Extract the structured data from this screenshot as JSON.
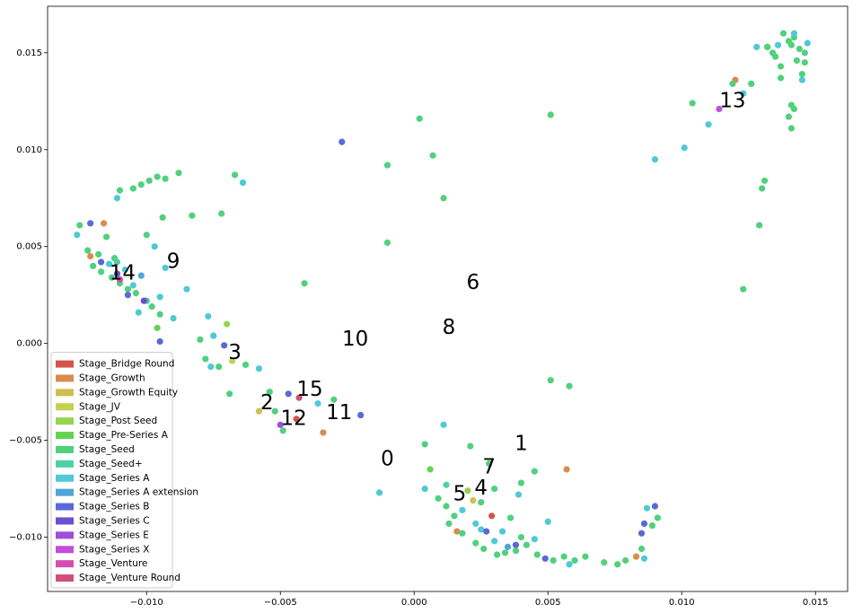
{
  "chart_data": {
    "type": "scatter",
    "title": "",
    "xlabel": "",
    "ylabel": "",
    "xlim": [
      -0.0137,
      0.0162
    ],
    "ylim": [
      -0.0128,
      0.0174
    ],
    "x_ticks": [
      -0.01,
      -0.005,
      0.0,
      0.005,
      0.01,
      0.015
    ],
    "x_tick_labels": [
      "−0.010",
      "−0.005",
      "0.000",
      "0.005",
      "0.010",
      "0.015"
    ],
    "y_ticks": [
      -0.01,
      -0.005,
      0.0,
      0.005,
      0.01,
      0.015
    ],
    "y_tick_labels": [
      "−0.010",
      "−0.005",
      "0.000",
      "0.005",
      "0.010",
      "0.015"
    ],
    "grid": false,
    "legend_position": "lower-left",
    "series": [
      {
        "name": "Stage_Bridge Round",
        "color": "#d5534a",
        "points": [
          [
            -0.0044,
            -0.0039
          ],
          [
            0.0029,
            -0.0089
          ]
        ]
      },
      {
        "name": "Stage_Growth",
        "color": "#d98c4e",
        "points": [
          [
            -0.0116,
            0.0062
          ],
          [
            -0.0034,
            -0.0046
          ],
          [
            0.0057,
            -0.0065
          ],
          [
            0.012,
            0.0136
          ],
          [
            0.0132,
            0.0153
          ],
          [
            -0.0121,
            0.0045
          ],
          [
            0.0016,
            -0.0097
          ],
          [
            0.0083,
            -0.011
          ]
        ]
      },
      {
        "name": "Stage_Growth Equity",
        "color": "#cfbf4f",
        "points": [
          [
            -0.0058,
            -0.0035
          ],
          [
            0.0022,
            -0.0081
          ]
        ]
      },
      {
        "name": "Stage_JV",
        "color": "#c4d14f",
        "points": [
          [
            -0.0068,
            -0.0009
          ]
        ]
      },
      {
        "name": "Stage_Post Seed",
        "color": "#94d451",
        "points": [
          [
            -0.007,
            0.001
          ],
          [
            0.002,
            -0.0076
          ]
        ]
      },
      {
        "name": "Stage_Pre-Series A",
        "color": "#62d451",
        "points": [
          [
            -0.0096,
            0.0008
          ],
          [
            0.0006,
            -0.0065
          ]
        ]
      },
      {
        "name": "Stage_Seed",
        "color": "#50d17c",
        "points": [
          [
            -0.0125,
            0.0061
          ],
          [
            -0.0122,
            0.0048
          ],
          [
            -0.0118,
            0.0046
          ],
          [
            -0.0115,
            0.0055
          ],
          [
            -0.0112,
            0.0044
          ],
          [
            -0.012,
            0.004
          ],
          [
            -0.0117,
            0.0037
          ],
          [
            -0.0113,
            0.0034
          ],
          [
            -0.011,
            0.0031
          ],
          [
            -0.0107,
            0.0028
          ],
          [
            -0.0104,
            0.0026
          ],
          [
            -0.01,
            0.0022
          ],
          [
            -0.0098,
            0.0019
          ],
          [
            -0.0095,
            0.0015
          ],
          [
            -0.01,
            0.0056
          ],
          [
            -0.0105,
            0.008
          ],
          [
            -0.0102,
            0.0082
          ],
          [
            -0.0099,
            0.0084
          ],
          [
            -0.0096,
            0.0086
          ],
          [
            -0.0093,
            0.0085
          ],
          [
            -0.0088,
            0.0088
          ],
          [
            -0.011,
            0.0079
          ],
          [
            -0.0094,
            0.0065
          ],
          [
            -0.0083,
            0.0066
          ],
          [
            -0.0072,
            0.0067
          ],
          [
            -0.0067,
            0.0087
          ],
          [
            -0.008,
            0.0002
          ],
          [
            -0.0078,
            -0.0008
          ],
          [
            -0.0073,
            -0.0012
          ],
          [
            -0.0069,
            -0.0026
          ],
          [
            -0.0063,
            -0.0011
          ],
          [
            -0.0054,
            -0.0025
          ],
          [
            -0.0052,
            -0.0035
          ],
          [
            -0.0049,
            -0.0045
          ],
          [
            -0.0041,
            0.0031
          ],
          [
            -0.003,
            -0.0029
          ],
          [
            -0.001,
            0.0092
          ],
          [
            -0.001,
            0.0052
          ],
          [
            0.0002,
            0.0116
          ],
          [
            0.0007,
            0.0097
          ],
          [
            0.0011,
            0.0075
          ],
          [
            0.0051,
            0.0118
          ],
          [
            0.0051,
            -0.0019
          ],
          [
            0.0058,
            -0.0022
          ],
          [
            0.0045,
            -0.0066
          ],
          [
            0.004,
            -0.0072
          ],
          [
            0.0028,
            -0.0062
          ],
          [
            0.0021,
            -0.0053
          ],
          [
            0.0004,
            -0.0052
          ],
          [
            0.0009,
            -0.008
          ],
          [
            0.0012,
            -0.0084
          ],
          [
            0.0015,
            -0.0089
          ],
          [
            0.0013,
            -0.0093
          ],
          [
            0.0018,
            -0.0098
          ],
          [
            0.0023,
            -0.0103
          ],
          [
            0.0026,
            -0.0106
          ],
          [
            0.0031,
            -0.0109
          ],
          [
            0.0034,
            -0.0108
          ],
          [
            0.0038,
            -0.0107
          ],
          [
            0.0042,
            -0.0104
          ],
          [
            0.0046,
            -0.0109
          ],
          [
            0.0052,
            -0.0112
          ],
          [
            0.0056,
            -0.011
          ],
          [
            0.006,
            -0.0112
          ],
          [
            0.0064,
            -0.011
          ],
          [
            0.0071,
            -0.0113
          ],
          [
            0.0076,
            -0.0114
          ],
          [
            0.0079,
            -0.0112
          ],
          [
            0.0085,
            -0.0106
          ],
          [
            0.0089,
            -0.0094
          ],
          [
            0.0091,
            -0.009
          ],
          [
            0.0025,
            -0.0082
          ],
          [
            0.003,
            -0.0075
          ],
          [
            0.0036,
            -0.009
          ],
          [
            0.004,
            -0.01
          ],
          [
            0.0104,
            0.0124
          ],
          [
            0.0119,
            0.0134
          ],
          [
            0.0126,
            0.0134
          ],
          [
            0.013,
            0.008
          ],
          [
            0.0131,
            0.0084
          ],
          [
            0.0123,
            0.0028
          ],
          [
            0.0129,
            0.0061
          ],
          [
            0.0132,
            0.0153
          ],
          [
            0.0134,
            0.015
          ],
          [
            0.0135,
            0.0148
          ],
          [
            0.0137,
            0.0143
          ],
          [
            0.0138,
            0.016
          ],
          [
            0.014,
            0.0156
          ],
          [
            0.0141,
            0.0154
          ],
          [
            0.0142,
            0.0158
          ],
          [
            0.0143,
            0.0146
          ],
          [
            0.0144,
            0.0152
          ],
          [
            0.0146,
            0.015
          ],
          [
            0.0145,
            0.0139
          ],
          [
            0.0141,
            0.0123
          ],
          [
            0.014,
            0.0117
          ],
          [
            0.0141,
            0.0111
          ],
          [
            0.0142,
            0.0121
          ],
          [
            0.0137,
            0.0137
          ],
          [
            0.0146,
            0.0145
          ]
        ]
      },
      {
        "name": "Stage_Seed+",
        "color": "#4fd0a6",
        "points": [
          [
            -0.0111,
            0.0042
          ],
          [
            0.0012,
            -0.0073
          ]
        ]
      },
      {
        "name": "Stage_Series A",
        "color": "#4fc9d6",
        "points": [
          [
            -0.0126,
            0.0056
          ],
          [
            -0.0114,
            0.0041
          ],
          [
            -0.0111,
            0.0075
          ],
          [
            -0.0108,
            0.0038
          ],
          [
            -0.0105,
            0.003
          ],
          [
            -0.0103,
            0.0016
          ],
          [
            -0.0097,
            0.005
          ],
          [
            -0.0095,
            0.0024
          ],
          [
            -0.0093,
            0.0039
          ],
          [
            -0.009,
            0.0013
          ],
          [
            -0.0085,
            0.0028
          ],
          [
            -0.0077,
            0.0014
          ],
          [
            -0.0075,
            0.0004
          ],
          [
            -0.0076,
            -0.0012
          ],
          [
            -0.0058,
            -0.0013
          ],
          [
            -0.0064,
            0.0083
          ],
          [
            -0.0036,
            -0.0031
          ],
          [
            0.0011,
            -0.0042
          ],
          [
            -0.0013,
            -0.0077
          ],
          [
            0.0004,
            -0.0075
          ],
          [
            0.0018,
            -0.0086
          ],
          [
            0.0023,
            -0.0093
          ],
          [
            0.0025,
            -0.0096
          ],
          [
            0.003,
            -0.0102
          ],
          [
            0.0033,
            -0.0097
          ],
          [
            0.0039,
            -0.0078
          ],
          [
            0.0045,
            -0.0101
          ],
          [
            0.005,
            -0.0092
          ],
          [
            0.0058,
            -0.0114
          ],
          [
            0.0087,
            -0.0085
          ],
          [
            0.0086,
            -0.0111
          ],
          [
            0.009,
            0.0095
          ],
          [
            0.0101,
            0.0101
          ],
          [
            0.011,
            0.0113
          ],
          [
            0.0123,
            0.0129
          ],
          [
            0.0128,
            0.0153
          ],
          [
            0.0136,
            0.0154
          ],
          [
            0.0142,
            0.016
          ],
          [
            0.0147,
            0.0155
          ],
          [
            0.0145,
            0.0136
          ]
        ]
      },
      {
        "name": "Stage_Series A extension",
        "color": "#4fa5d6",
        "points": [
          [
            -0.0102,
            0.0035
          ],
          [
            0.0035,
            -0.0105
          ]
        ]
      },
      {
        "name": "Stage_Series B",
        "color": "#5a69d4",
        "points": [
          [
            -0.0121,
            0.0062
          ],
          [
            -0.0117,
            0.0042
          ],
          [
            -0.0107,
            0.0025
          ],
          [
            -0.0095,
            0.0001
          ],
          [
            -0.0071,
            -0.0001
          ],
          [
            -0.0047,
            -0.0026
          ],
          [
            -0.0027,
            0.0104
          ],
          [
            -0.002,
            -0.0037
          ],
          [
            0.0027,
            -0.0097
          ],
          [
            0.0038,
            -0.0104
          ],
          [
            0.0049,
            -0.0111
          ],
          [
            0.0086,
            -0.0093
          ],
          [
            0.009,
            -0.0084
          ],
          [
            0.0085,
            -0.0098
          ]
        ]
      },
      {
        "name": "Stage_Series C",
        "color": "#6a4fd4",
        "points": [
          [
            -0.0111,
            0.0036
          ],
          [
            -0.0101,
            0.0022
          ]
        ]
      },
      {
        "name": "Stage_Series E",
        "color": "#9d4fd6",
        "points": [
          [
            -0.005,
            -0.0042
          ]
        ]
      },
      {
        "name": "Stage_Series X",
        "color": "#c04fd6",
        "points": [
          [
            0.0114,
            0.0121
          ]
        ]
      },
      {
        "name": "Stage_Venture",
        "color": "#d14fb0",
        "points": [
          [
            -0.011,
            0.0033
          ]
        ]
      },
      {
        "name": "Stage_Venture Round",
        "color": "#d14f77",
        "points": [
          [
            -0.0043,
            -0.0028
          ]
        ]
      }
    ],
    "annotations": [
      {
        "text": "0",
        "x": -0.001,
        "y": -0.006
      },
      {
        "text": "1",
        "x": 0.004,
        "y": -0.0052
      },
      {
        "text": "2",
        "x": -0.0055,
        "y": -0.0031
      },
      {
        "text": "3",
        "x": -0.0067,
        "y": -0.0005
      },
      {
        "text": "4",
        "x": 0.0025,
        "y": -0.0075
      },
      {
        "text": "5",
        "x": 0.0017,
        "y": -0.0078
      },
      {
        "text": "6",
        "x": 0.0022,
        "y": 0.0031
      },
      {
        "text": "7",
        "x": 0.0028,
        "y": -0.0064
      },
      {
        "text": "8",
        "x": 0.0013,
        "y": 0.0008
      },
      {
        "text": "9",
        "x": -0.009,
        "y": 0.0042
      },
      {
        "text": "10",
        "x": -0.0022,
        "y": 0.0002
      },
      {
        "text": "11",
        "x": -0.0028,
        "y": -0.0036
      },
      {
        "text": "12",
        "x": -0.0045,
        "y": -0.0039
      },
      {
        "text": "13",
        "x": 0.0119,
        "y": 0.0125
      },
      {
        "text": "14",
        "x": -0.0109,
        "y": 0.0036
      },
      {
        "text": "15",
        "x": -0.0039,
        "y": -0.0024
      }
    ]
  }
}
